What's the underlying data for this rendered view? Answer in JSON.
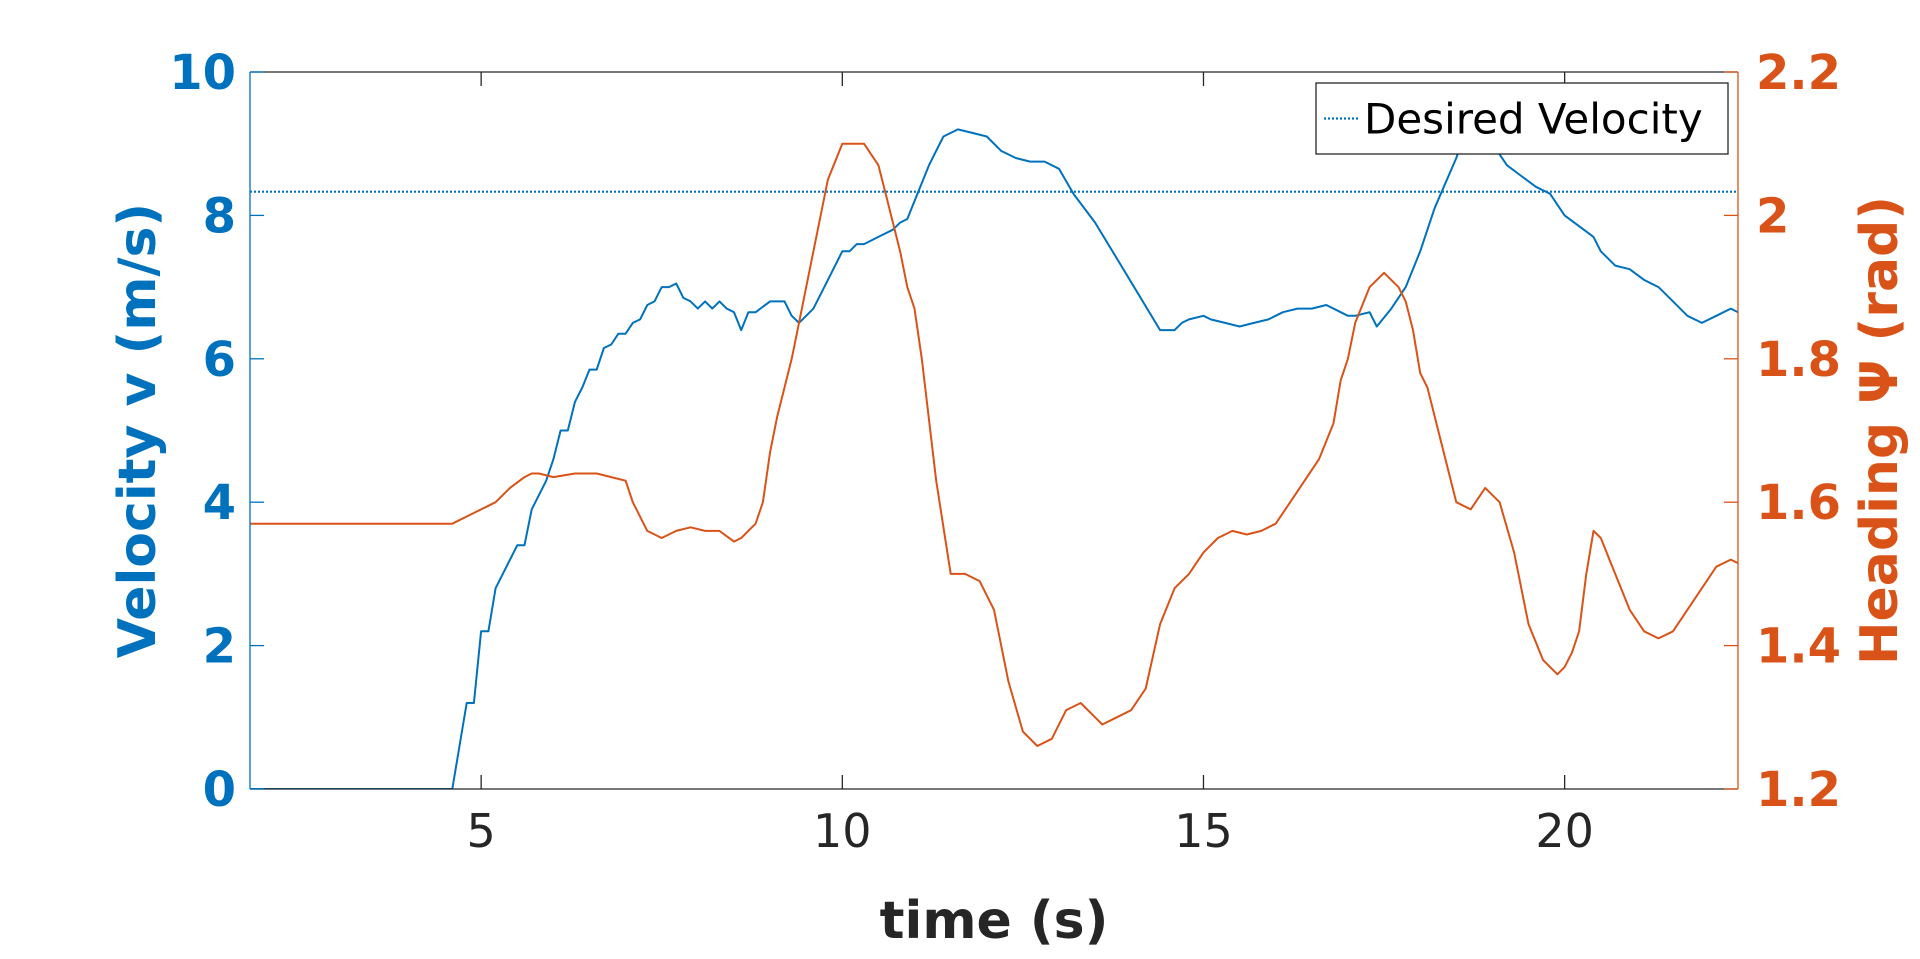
{
  "colors": {
    "velocity": "#0072BD",
    "heading": "#D95319",
    "axis": "#262626",
    "plot_bg": "#ffffff"
  },
  "chart_data": {
    "type": "line",
    "xlabel": "time (s)",
    "ylabel_left": "Velocity v (m/s)",
    "ylabel_right": "Heading Ψ (rad)",
    "xlim": [
      1.8,
      22.4
    ],
    "ylim_left": [
      0,
      10
    ],
    "ylim_right": [
      1.2,
      2.2
    ],
    "xticks": [
      5,
      10,
      15,
      20
    ],
    "xtick_labels": [
      "5",
      "10",
      "15",
      "20"
    ],
    "yticks_left": [
      0,
      2,
      4,
      6,
      8,
      10
    ],
    "ytick_labels_left": [
      "0",
      "2",
      "4",
      "6",
      "8",
      "10"
    ],
    "yticks_right": [
      1.2,
      1.4,
      1.6,
      1.8,
      2.0,
      2.2
    ],
    "ytick_labels_right": [
      "1.2",
      "1.4",
      "1.6",
      "1.8",
      "2",
      "2.2"
    ],
    "grid": false,
    "legend": {
      "placement": "top-right",
      "entries": [
        {
          "name": "Desired Velocity",
          "style": "dotted",
          "color": "#0072BD"
        }
      ]
    },
    "series": [
      {
        "axis": "left",
        "style": "dotted",
        "color": "#0072BD",
        "name": "Desired Velocity",
        "x": [
          1.8,
          22.4
        ],
        "y": [
          8.33,
          8.33
        ]
      },
      {
        "axis": "left",
        "style": "solid",
        "color": "#0072BD",
        "x": [
          1.8,
          2.5,
          3.0,
          4.0,
          4.6,
          4.7,
          4.8,
          4.9,
          5.0,
          5.1,
          5.2,
          5.3,
          5.5,
          5.6,
          5.7,
          5.9,
          6.0,
          6.1,
          6.2,
          6.3,
          6.4,
          6.5,
          6.6,
          6.7,
          6.8,
          6.9,
          7.0,
          7.1,
          7.2,
          7.3,
          7.4,
          7.5,
          7.6,
          7.7,
          7.8,
          7.9,
          8.0,
          8.1,
          8.2,
          8.3,
          8.4,
          8.5,
          8.6,
          8.7,
          8.8,
          9.0,
          9.1,
          9.2,
          9.3,
          9.4,
          9.5,
          9.6,
          9.8,
          10.0,
          10.1,
          10.2,
          10.3,
          10.5,
          10.7,
          10.8,
          10.9,
          11.0,
          11.2,
          11.4,
          11.6,
          11.8,
          12.0,
          12.2,
          12.4,
          12.6,
          12.8,
          13.0,
          13.2,
          13.5,
          13.8,
          14.1,
          14.4,
          14.6,
          14.7,
          14.8,
          15.0,
          15.1,
          15.3,
          15.5,
          15.7,
          15.9,
          16.1,
          16.3,
          16.5,
          16.7,
          16.9,
          17.0,
          17.1,
          17.3,
          17.4,
          17.6,
          17.8,
          18.0,
          18.2,
          18.5,
          18.6,
          18.7,
          18.8,
          19.0,
          19.2,
          19.4,
          19.6,
          19.8,
          20.0,
          20.2,
          20.4,
          20.5,
          20.7,
          20.9,
          21.1,
          21.3,
          21.5,
          21.7,
          21.9,
          22.1,
          22.3,
          22.4
        ],
        "y": [
          0.0,
          0.0,
          0.0,
          0.0,
          0.0,
          0.6,
          1.2,
          1.2,
          2.2,
          2.2,
          2.8,
          3.0,
          3.4,
          3.4,
          3.9,
          4.3,
          4.6,
          5.0,
          5.0,
          5.4,
          5.6,
          5.85,
          5.85,
          6.15,
          6.2,
          6.35,
          6.35,
          6.5,
          6.55,
          6.75,
          6.8,
          7.0,
          7.0,
          7.05,
          6.85,
          6.8,
          6.7,
          6.8,
          6.7,
          6.8,
          6.7,
          6.65,
          6.4,
          6.65,
          6.65,
          6.8,
          6.8,
          6.8,
          6.6,
          6.5,
          6.6,
          6.7,
          7.1,
          7.5,
          7.5,
          7.6,
          7.6,
          7.7,
          7.8,
          7.9,
          7.95,
          8.2,
          8.7,
          9.1,
          9.2,
          9.15,
          9.1,
          8.9,
          8.8,
          8.75,
          8.75,
          8.65,
          8.3,
          7.9,
          7.4,
          6.9,
          6.4,
          6.4,
          6.5,
          6.55,
          6.6,
          6.55,
          6.5,
          6.45,
          6.5,
          6.55,
          6.65,
          6.7,
          6.7,
          6.75,
          6.65,
          6.6,
          6.6,
          6.65,
          6.45,
          6.7,
          7.0,
          7.5,
          8.1,
          8.8,
          9.1,
          9.3,
          9.3,
          9.0,
          8.7,
          8.55,
          8.4,
          8.3,
          8.0,
          7.85,
          7.7,
          7.5,
          7.3,
          7.25,
          7.1,
          7.0,
          6.8,
          6.6,
          6.5,
          6.6,
          6.7,
          6.65
        ]
      },
      {
        "axis": "right",
        "style": "solid",
        "color": "#D95319",
        "x": [
          1.8,
          3.0,
          4.0,
          4.6,
          4.8,
          5.0,
          5.1,
          5.2,
          5.4,
          5.6,
          5.7,
          5.8,
          6.0,
          6.3,
          6.6,
          6.8,
          7.0,
          7.1,
          7.3,
          7.5,
          7.7,
          7.9,
          8.1,
          8.3,
          8.5,
          8.6,
          8.8,
          8.9,
          9.0,
          9.1,
          9.3,
          9.4,
          9.5,
          9.6,
          9.8,
          10.0,
          10.1,
          10.2,
          10.3,
          10.5,
          10.6,
          10.8,
          10.9,
          11.0,
          11.1,
          11.3,
          11.5,
          11.7,
          11.9,
          12.1,
          12.3,
          12.5,
          12.7,
          12.9,
          13.1,
          13.3,
          13.5,
          13.6,
          13.8,
          14.0,
          14.2,
          14.4,
          14.6,
          14.8,
          15.0,
          15.2,
          15.4,
          15.6,
          15.8,
          16.0,
          16.2,
          16.4,
          16.6,
          16.8,
          16.9,
          17.0,
          17.1,
          17.3,
          17.5,
          17.7,
          17.8,
          17.9,
          18.0,
          18.1,
          18.3,
          18.5,
          18.7,
          18.9,
          19.1,
          19.3,
          19.5,
          19.7,
          19.9,
          20.0,
          20.1,
          20.2,
          20.3,
          20.4,
          20.5,
          20.7,
          20.9,
          21.1,
          21.3,
          21.5,
          21.7,
          21.9,
          22.1,
          22.3,
          22.4
        ],
        "y": [
          1.57,
          1.57,
          1.57,
          1.57,
          1.58,
          1.59,
          1.595,
          1.6,
          1.62,
          1.635,
          1.64,
          1.64,
          1.635,
          1.64,
          1.64,
          1.635,
          1.63,
          1.6,
          1.56,
          1.55,
          1.56,
          1.565,
          1.56,
          1.56,
          1.545,
          1.55,
          1.57,
          1.6,
          1.67,
          1.72,
          1.8,
          1.85,
          1.9,
          1.95,
          2.05,
          2.1,
          2.1,
          2.1,
          2.1,
          2.07,
          2.03,
          1.95,
          1.9,
          1.87,
          1.8,
          1.63,
          1.5,
          1.5,
          1.49,
          1.45,
          1.35,
          1.28,
          1.26,
          1.27,
          1.31,
          1.32,
          1.3,
          1.29,
          1.3,
          1.31,
          1.34,
          1.43,
          1.48,
          1.5,
          1.53,
          1.55,
          1.56,
          1.555,
          1.56,
          1.57,
          1.6,
          1.63,
          1.66,
          1.71,
          1.77,
          1.8,
          1.85,
          1.9,
          1.92,
          1.9,
          1.88,
          1.84,
          1.78,
          1.76,
          1.68,
          1.6,
          1.59,
          1.62,
          1.6,
          1.53,
          1.43,
          1.38,
          1.36,
          1.37,
          1.39,
          1.42,
          1.5,
          1.56,
          1.55,
          1.5,
          1.45,
          1.42,
          1.41,
          1.42,
          1.45,
          1.48,
          1.51,
          1.52,
          1.515
        ]
      }
    ]
  }
}
